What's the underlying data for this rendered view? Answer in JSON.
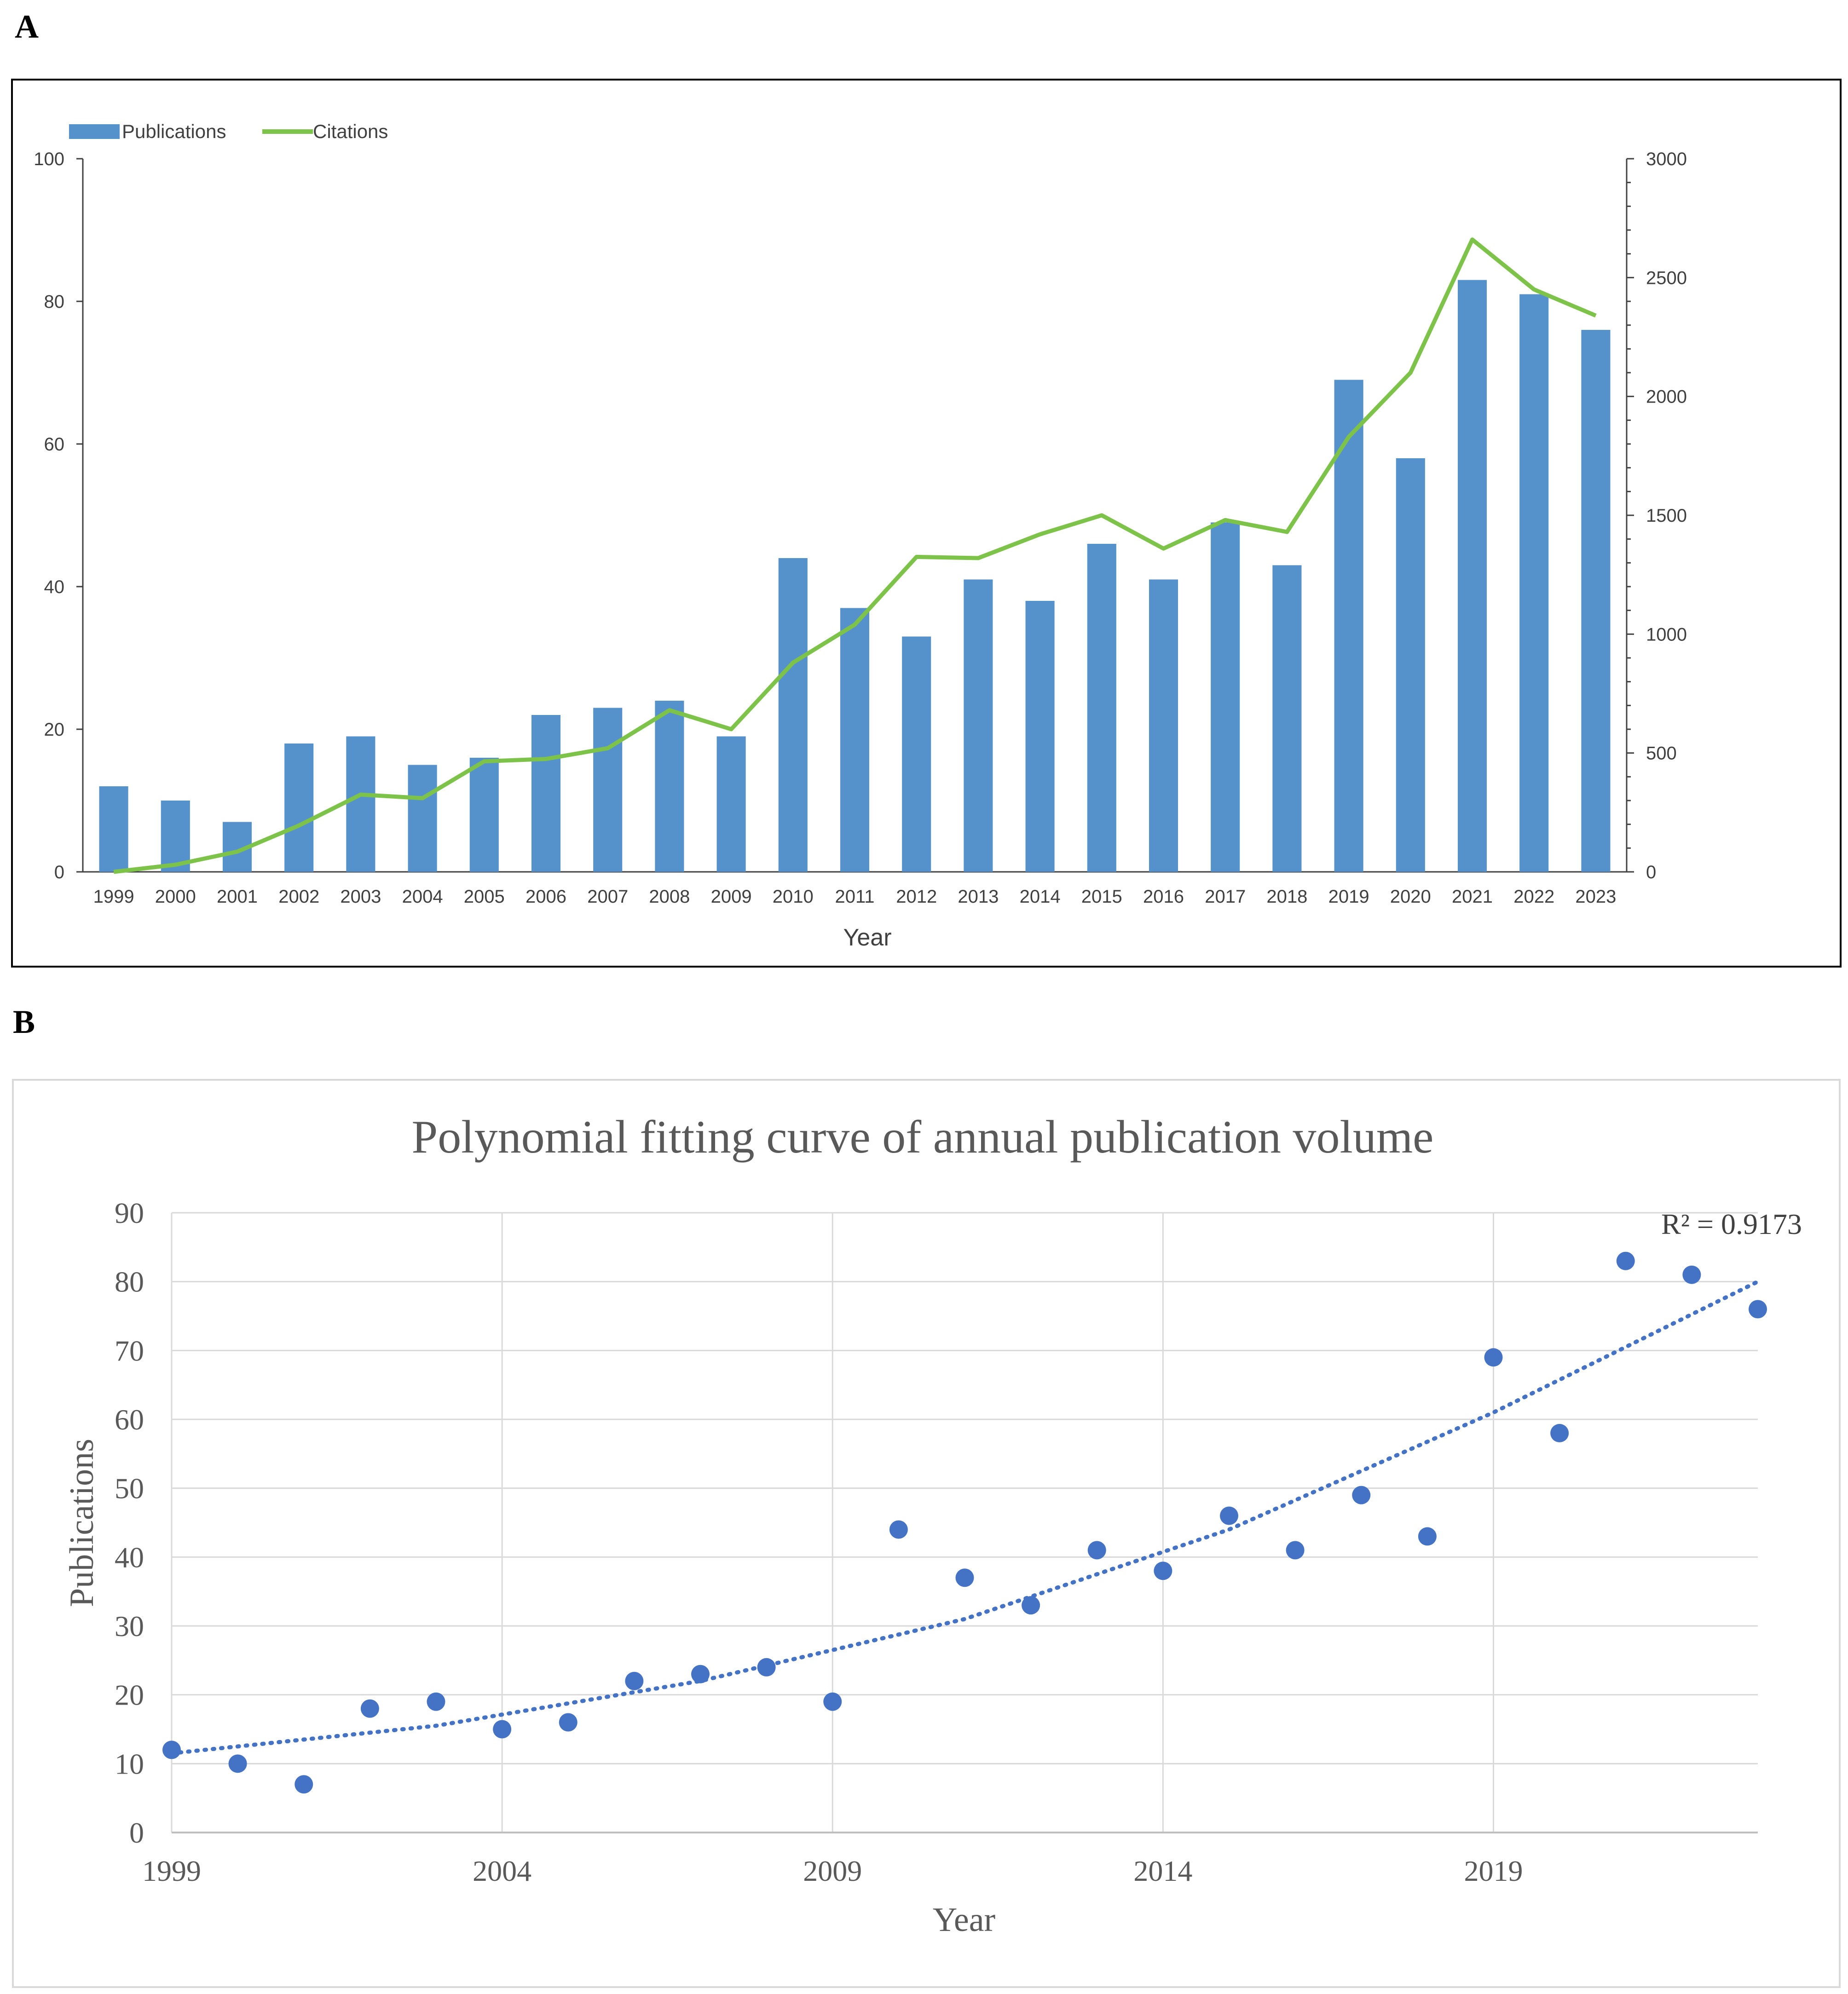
{
  "panels": {
    "a_label": "A",
    "b_label": "B"
  },
  "colors": {
    "bar": "#5592cb",
    "line": "#7dc34a",
    "point": "#4472c4",
    "trend": "#4472c4",
    "grid": "#d9d9d9",
    "axis_text": "#404040"
  },
  "chart_data": [
    {
      "type": "bar",
      "title": "",
      "categories": [
        "1999",
        "2000",
        "2001",
        "2002",
        "2003",
        "2004",
        "2005",
        "2006",
        "2007",
        "2008",
        "2009",
        "2010",
        "2011",
        "2012",
        "2013",
        "2014",
        "2015",
        "2016",
        "2017",
        "2018",
        "2019",
        "2020",
        "2021",
        "2022",
        "2023"
      ],
      "series": [
        {
          "name": "Publications",
          "type": "bar",
          "axis": "left",
          "values": [
            12,
            10,
            7,
            18,
            19,
            15,
            16,
            22,
            23,
            24,
            19,
            44,
            37,
            33,
            41,
            38,
            46,
            41,
            49,
            43,
            69,
            58,
            83,
            81,
            76
          ]
        },
        {
          "name": "Citations",
          "type": "line",
          "axis": "right",
          "values": [
            0,
            30,
            85,
            195,
            325,
            310,
            465,
            475,
            520,
            680,
            600,
            880,
            1040,
            1325,
            1320,
            1420,
            1500,
            1360,
            1480,
            1430,
            1830,
            2100,
            2660,
            2450,
            2340
          ]
        }
      ],
      "xlabel": "Year",
      "ylabel": "",
      "ylim": [
        0,
        100
      ],
      "y_ticks": [
        "0",
        "20",
        "40",
        "60",
        "80",
        "100"
      ],
      "y2lim": [
        0,
        3000
      ],
      "y2_ticks": [
        "0",
        "500",
        "1000",
        "1500",
        "2000",
        "2500",
        "3000"
      ],
      "legend": "top-left"
    },
    {
      "type": "scatter",
      "title": "Polynomial fitting curve of annual publication volume",
      "x": [
        1999,
        2000,
        2001,
        2002,
        2003,
        2004,
        2005,
        2006,
        2007,
        2008,
        2009,
        2010,
        2011,
        2012,
        2013,
        2014,
        2015,
        2016,
        2017,
        2018,
        2019,
        2020,
        2021,
        2022,
        2023
      ],
      "y": [
        12,
        10,
        7,
        18,
        19,
        15,
        16,
        22,
        23,
        24,
        19,
        44,
        37,
        33,
        41,
        38,
        46,
        41,
        49,
        43,
        69,
        58,
        83,
        81,
        76
      ],
      "trendline": {
        "type": "polynomial",
        "x": [
          1999,
          2003,
          2007,
          2011,
          2015,
          2019,
          2023
        ],
        "y": [
          11.5,
          15.5,
          22,
          31,
          44,
          61,
          80
        ],
        "label": "R² = 0.9173"
      },
      "xlabel": "Year",
      "ylabel": "Publications",
      "xlim": [
        1999,
        2023
      ],
      "ylim": [
        0,
        90
      ],
      "x_ticks": [
        "1999",
        "2004",
        "2009",
        "2014",
        "2019"
      ],
      "y_ticks": [
        "0",
        "10",
        "20",
        "30",
        "40",
        "50",
        "60",
        "70",
        "80",
        "90"
      ],
      "grid": true
    }
  ]
}
